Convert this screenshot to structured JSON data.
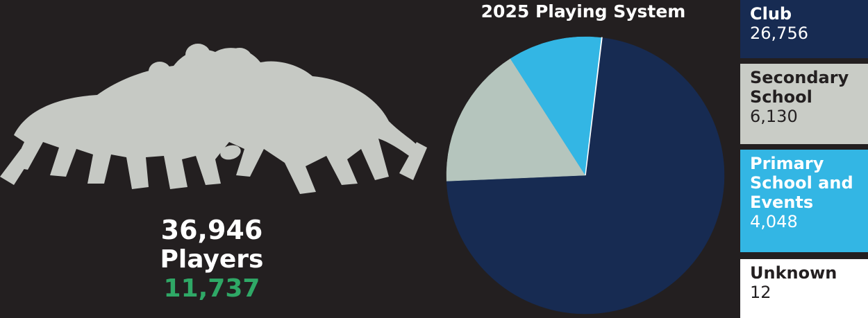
{
  "summary": {
    "total_players": "36,946",
    "players_label": "Players",
    "secondary_figure": "11,737",
    "secondary_color": "#2fa866"
  },
  "chart_data": {
    "type": "pie",
    "title": "2025 Playing System",
    "slices": [
      {
        "name": "Club",
        "value": 26756,
        "value_label": "26,756",
        "color": "#172b52",
        "text_color": "#ffffff"
      },
      {
        "name": "Secondary School",
        "value": 6130,
        "value_label": "6,130",
        "color": "#b5c5bd",
        "legend_color": "#c9ccc6",
        "text_color": "#231f20"
      },
      {
        "name": "Primary School and Events",
        "value": 4048,
        "value_label": "4,048",
        "color": "#33b6e4",
        "text_color": "#ffffff"
      },
      {
        "name": "Unknown",
        "value": 12,
        "value_label": "12",
        "color": "#ffffff",
        "text_color": "#231f20"
      }
    ],
    "legend_position": "right"
  },
  "illustration": {
    "icon": "rugby-scrum-silhouette-icon",
    "color": "#c6c9c4"
  }
}
